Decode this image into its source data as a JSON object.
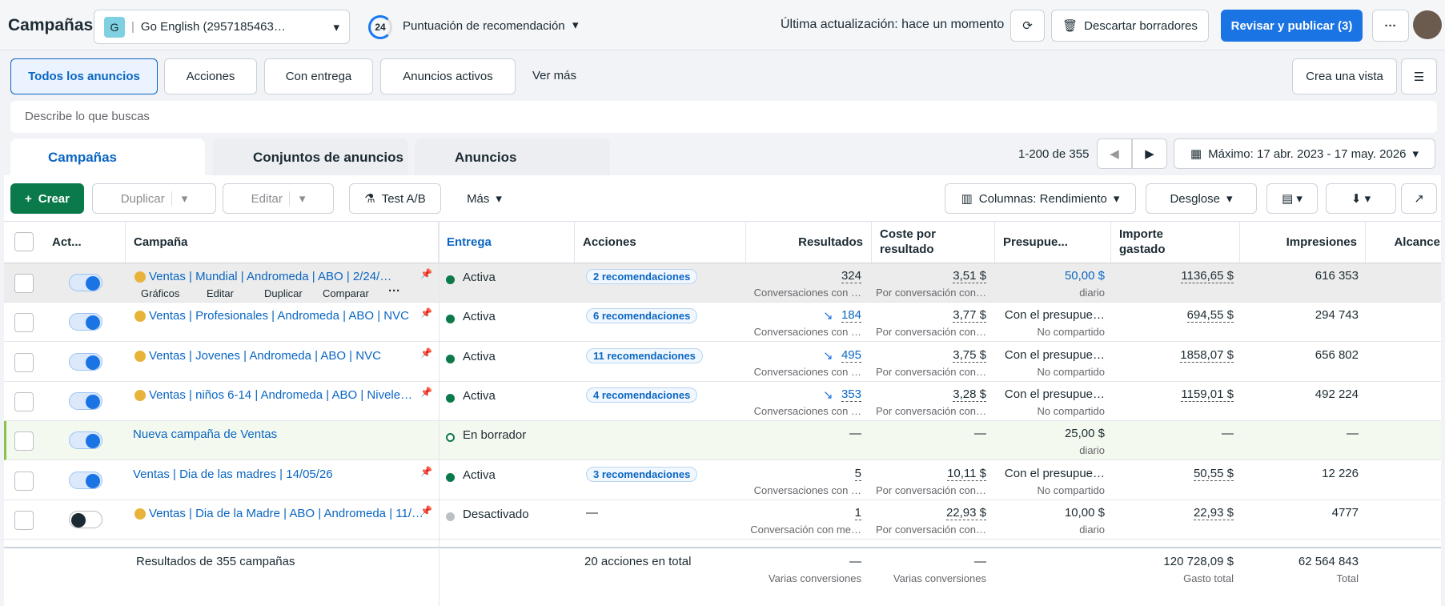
{
  "header": {
    "title": "Campañas",
    "account_initial": "G",
    "account": "Go English (2957185463…",
    "score": "24",
    "score_label": "Puntuación de recomendación",
    "last_update": "Última actualización: hace un momento",
    "discard": "Descartar borradores",
    "publish": "Revisar y publicar (3)"
  },
  "filters": {
    "tabs": [
      "Todos los anuncios",
      "Acciones",
      "Con entrega",
      "Anuncios activos"
    ],
    "see_more": "Ver más",
    "create_view": "Crea una vista"
  },
  "search_placeholder": "Describe lo que buscas",
  "level_tabs": [
    "Campañas",
    "Conjuntos de anuncios",
    "Anuncios"
  ],
  "pagination": "1-200 de 355",
  "date_range": "Máximo: 17 abr. 2023 - 17 may. 2026",
  "toolbar": {
    "create": "Crear",
    "duplicate": "Duplicar",
    "edit": "Editar",
    "ab_test": "Test A/B",
    "more": "Más",
    "columns": "Columnas: Rendimiento",
    "breakdown": "Desglose"
  },
  "table": {
    "columns": [
      "Act...",
      "Campaña",
      "Entrega",
      "Acciones",
      "Resultados",
      "Coste por resultado",
      "Presupue...",
      "Importe gastado",
      "Impresiones",
      "Alcance"
    ],
    "row_actions": [
      "Gráficos",
      "Editar",
      "Duplicar",
      "Comparar"
    ],
    "rows": [
      {
        "name": "Ventas | Mundial | Andromeda | ABO | 2/24/…",
        "delivery": "Activa",
        "actions": "2 recomendaciones",
        "results": "324",
        "results_sub": "Conversaciones con …",
        "cost": "3,51 $",
        "cost_sub": "Por conversación con…",
        "budget": "50,00 $",
        "budget_sub": "diario",
        "spent": "1136,65 $",
        "impressions": "616 353"
      },
      {
        "name": "Ventas | Profesionales | Andromeda | ABO | NVC",
        "delivery": "Activa",
        "actions": "6 recomendaciones",
        "results": "184",
        "results_sub": "Conversaciones con …",
        "cost": "3,77 $",
        "cost_sub": "Por conversación con…",
        "budget": "Con el presupue…",
        "budget_sub": "No compartido",
        "spent": "694,55 $",
        "impressions": "294 743"
      },
      {
        "name": "Ventas | Jovenes | Andromeda | ABO | NVC",
        "delivery": "Activa",
        "actions": "11 recomendaciones",
        "results": "495",
        "results_sub": "Conversaciones con …",
        "cost": "3,75 $",
        "cost_sub": "Por conversación con…",
        "budget": "Con el presupue…",
        "budget_sub": "No compartido",
        "spent": "1858,07 $",
        "impressions": "656 802"
      },
      {
        "name": "Ventas | niños 6-14 | Andromeda | ABO | Nivele…",
        "delivery": "Activa",
        "actions": "4 recomendaciones",
        "results": "353",
        "results_sub": "Conversaciones con …",
        "cost": "3,28 $",
        "cost_sub": "Por conversación con…",
        "budget": "Con el presupue…",
        "budget_sub": "No compartido",
        "spent": "1159,01 $",
        "impressions": "492 224"
      },
      {
        "name": "Nueva campaña de Ventas",
        "delivery": "En borrador",
        "results": "—",
        "cost": "—",
        "budget": "25,00 $",
        "budget_sub": "diario",
        "spent": "—",
        "impressions": "—"
      },
      {
        "name": "Ventas | Dia de las madres | 14/05/26",
        "delivery": "Activa",
        "actions": "3 recomendaciones",
        "results": "5",
        "results_sub": "Conversaciones con …",
        "cost": "10,11 $",
        "cost_sub": "Por conversación con…",
        "budget": "Con el presupue…",
        "budget_sub": "No compartido",
        "spent": "50,55 $",
        "impressions": "12 226"
      },
      {
        "name": "Ventas | Dia de la Madre | ABO | Andromeda | 11/…",
        "delivery": "Desactivado",
        "actions": "—",
        "results": "1",
        "results_sub": "Conversación con me…",
        "cost": "22,93 $",
        "cost_sub": "Por conversación con…",
        "budget": "10,00 $",
        "budget_sub": "diario",
        "spent": "22,93 $",
        "impressions": "4777"
      }
    ]
  },
  "footer": {
    "label": "Resultados de 355 campañas",
    "actions": "20 acciones en total",
    "results": "—",
    "results_sub": "Varias conversiones",
    "cost": "—",
    "cost_sub": "Varias conversiones",
    "spent": "120 728,09 $",
    "spent_sub": "Gasto total",
    "impressions": "62 564 843",
    "impressions_sub": "Total"
  }
}
